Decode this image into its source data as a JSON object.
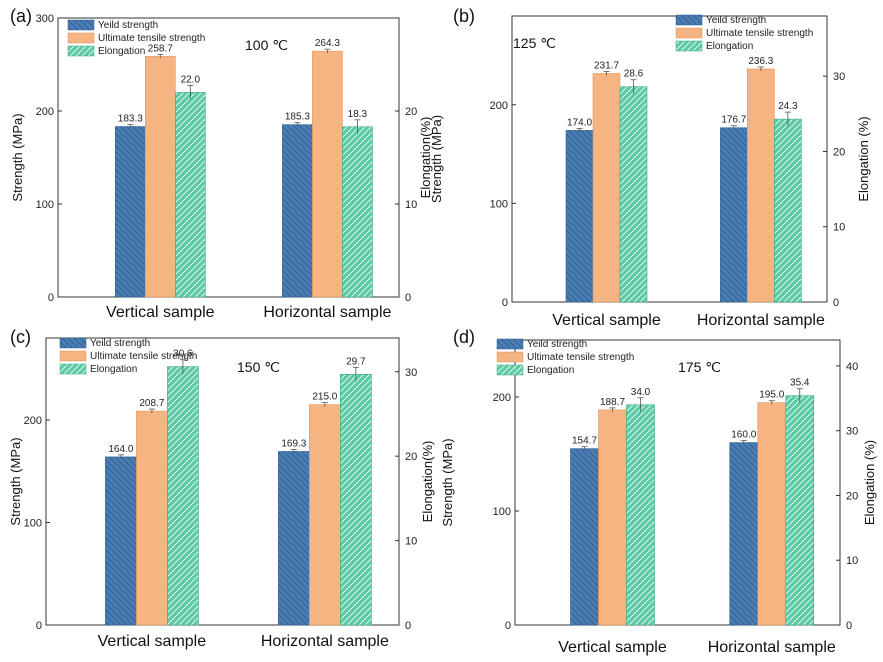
{
  "colors": {
    "yield": "#4a7db3",
    "uts": "#f6b482",
    "elong": "#5ccaa5",
    "axis": "#333333"
  },
  "legend_labels": [
    "Yeild strength",
    "Ultimate tensile strength",
    "Elongation"
  ],
  "chart_data": [
    {
      "type": "bar",
      "panel_label": "(a)",
      "temperature": "100 ℃",
      "categories": [
        "Vertical sample",
        "Horizontal sample"
      ],
      "ylabel": "Strength (MPa)",
      "y2label": "Elongation(%)",
      "ylim": [
        0,
        300
      ],
      "yticks": [
        0,
        100,
        200,
        300
      ],
      "y2lim": [
        0,
        30
      ],
      "y2ticks": [
        0,
        10,
        20
      ],
      "series": [
        {
          "name": "Yeild strength",
          "axis": "left",
          "values": [
            183.3,
            185.3
          ],
          "labels": [
            "183.3",
            "185.3"
          ]
        },
        {
          "name": "Ultimate tensile strength",
          "axis": "left",
          "values": [
            258.7,
            264.3
          ],
          "labels": [
            "258.7",
            "264.3"
          ]
        },
        {
          "name": "Elongation",
          "axis": "right",
          "values": [
            22.0,
            18.3
          ],
          "labels": [
            "22.0",
            "18.3"
          ]
        }
      ]
    },
    {
      "type": "bar",
      "panel_label": "(b)",
      "temperature": "125 ℃",
      "categories": [
        "Vertical sample",
        "Horizontal sample"
      ],
      "ylabel": "Strength (MPa)",
      "y2label": "Elongation (%)",
      "ylim": [
        0,
        290
      ],
      "yticks": [
        0,
        100,
        200
      ],
      "y2lim": [
        0,
        38
      ],
      "y2ticks": [
        0,
        10,
        20,
        30
      ],
      "series": [
        {
          "name": "Yeild strength",
          "axis": "left",
          "values": [
            174.0,
            176.7
          ],
          "labels": [
            "174.0",
            "176.7"
          ]
        },
        {
          "name": "Ultimate tensile strength",
          "axis": "left",
          "values": [
            231.7,
            236.3
          ],
          "labels": [
            "231.7",
            "236.3"
          ]
        },
        {
          "name": "Elongation",
          "axis": "right",
          "values": [
            28.6,
            24.3
          ],
          "labels": [
            "28.6",
            "24.3"
          ]
        }
      ]
    },
    {
      "type": "bar",
      "panel_label": "(c)",
      "temperature": "150 ℃",
      "categories": [
        "Vertical sample",
        "Horizontal sample"
      ],
      "ylabel": "Strength (MPa)",
      "y2label": "Elongation(%)",
      "ylim": [
        0,
        280
      ],
      "yticks": [
        0,
        100,
        200
      ],
      "y2lim": [
        0,
        34
      ],
      "y2ticks": [
        0,
        10,
        20,
        30
      ],
      "series": [
        {
          "name": "Yeild strength",
          "axis": "left",
          "values": [
            164.0,
            169.3
          ],
          "labels": [
            "164.0",
            "169.3"
          ]
        },
        {
          "name": "Ultimate tensile strength",
          "axis": "left",
          "values": [
            208.7,
            215.0
          ],
          "labels": [
            "208.7",
            "215.0"
          ]
        },
        {
          "name": "Elongation",
          "axis": "right",
          "values": [
            30.6,
            29.7
          ],
          "labels": [
            "30.6",
            "29.7"
          ]
        }
      ]
    },
    {
      "type": "bar",
      "panel_label": "(d)",
      "temperature": "175 ℃",
      "categories": [
        "Vertical sample",
        "Horizontal sample"
      ],
      "ylabel": "Strength (MPa)",
      "y2label": "Elongation (%)",
      "ylim": [
        0,
        250
      ],
      "yticks": [
        0,
        100,
        200
      ],
      "y2lim": [
        0,
        44
      ],
      "y2ticks": [
        0,
        10,
        20,
        30,
        40
      ],
      "series": [
        {
          "name": "Yeild strength",
          "axis": "left",
          "values": [
            154.7,
            160.0
          ],
          "labels": [
            "154.7",
            "160.0"
          ]
        },
        {
          "name": "Ultimate tensile strength",
          "axis": "left",
          "values": [
            188.7,
            195.0
          ],
          "labels": [
            "188.7",
            "195.0"
          ]
        },
        {
          "name": "Elongation",
          "axis": "right",
          "values": [
            34.0,
            35.4
          ],
          "labels": [
            "34.0",
            "35.4"
          ]
        }
      ]
    }
  ]
}
